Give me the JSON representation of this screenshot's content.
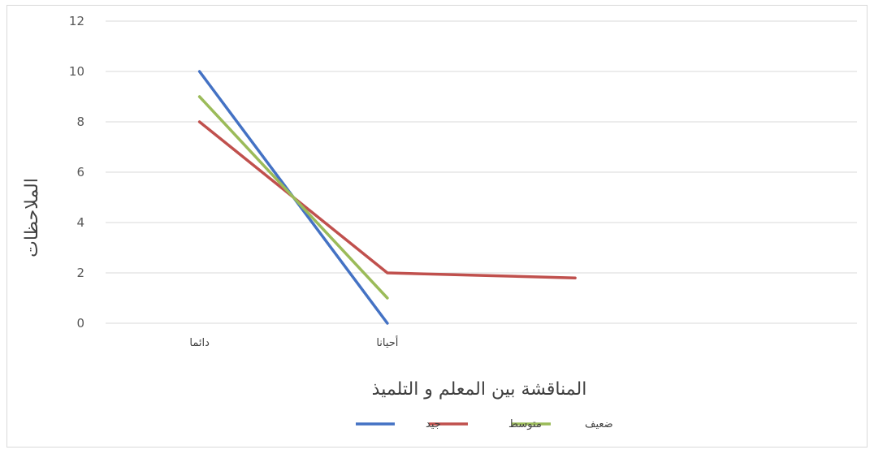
{
  "chart_data": {
    "type": "line",
    "categories": [
      "دائما",
      "أحيانا",
      ""
    ],
    "xlabel": "المناقشة بين المعلم و التلميذ",
    "ylabel": "الملاحظات",
    "ylim": [
      0,
      12
    ],
    "yticks": [
      0,
      2,
      4,
      6,
      8,
      10,
      12
    ],
    "grid": true,
    "legend_position": "bottom",
    "series": [
      {
        "name": "جيد",
        "color": "#4472c4",
        "values": [
          10,
          0,
          null
        ]
      },
      {
        "name": "متوسط",
        "color": "#c0504d",
        "values": [
          8,
          2,
          1.8
        ]
      },
      {
        "name": "ضعيف",
        "color": "#9bbb59",
        "values": [
          9,
          1,
          null
        ]
      }
    ]
  }
}
